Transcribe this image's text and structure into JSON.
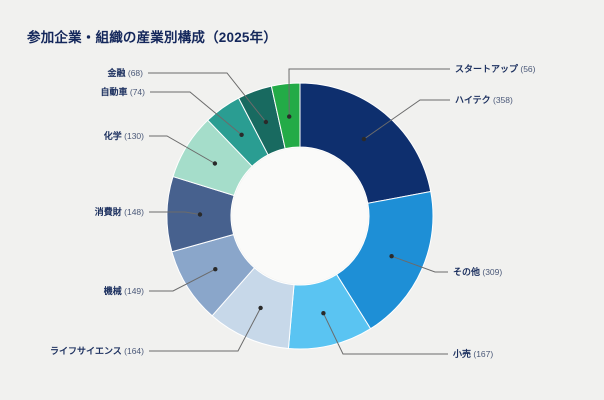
{
  "chart_data": {
    "type": "pie",
    "subtype": "donut",
    "title": "参加企業・組織の産業別構成（2025年）",
    "total": 1623,
    "legend_position": "callout-labels",
    "background_color": "#f1f1ef",
    "hole_color": "#fafaf9",
    "slices": [
      {
        "label": "ハイテク",
        "value": 358,
        "color": "#0e2f6e"
      },
      {
        "label": "その他",
        "value": 309,
        "color": "#1e8fd6"
      },
      {
        "label": "小売",
        "value": 167,
        "color": "#5ac4f2"
      },
      {
        "label": "ライフサイエンス",
        "value": 164,
        "color": "#c7d8e9"
      },
      {
        "label": "機械",
        "value": 149,
        "color": "#8aa6ca"
      },
      {
        "label": "消費財",
        "value": 148,
        "color": "#47618e"
      },
      {
        "label": "化学",
        "value": 130,
        "color": "#a5ddca"
      },
      {
        "label": "自動車",
        "value": 74,
        "color": "#2a9d92"
      },
      {
        "label": "金融",
        "value": 68,
        "color": "#186a60"
      },
      {
        "label": "スタートアップ",
        "value": 56,
        "color": "#23ab47"
      }
    ]
  }
}
